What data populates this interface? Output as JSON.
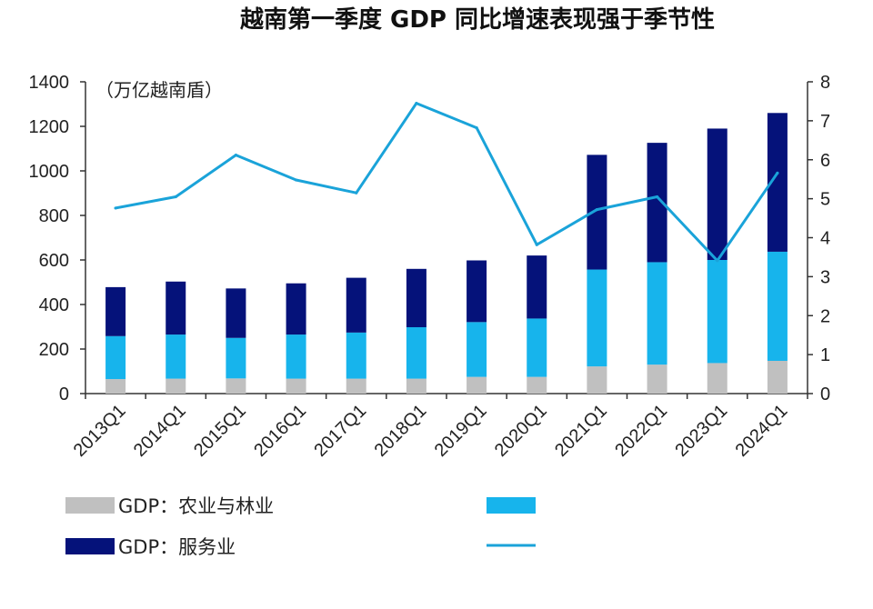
{
  "chart_data": {
    "type": "bar",
    "title": "越南第一季度 GDP 同比增速表现强于季节性",
    "unit_label": "（万亿越南盾）",
    "categories": [
      "2013Q1",
      "2014Q1",
      "2015Q1",
      "2016Q1",
      "2017Q1",
      "2018Q1",
      "2019Q1",
      "2020Q1",
      "2021Q1",
      "2022Q1",
      "2023Q1",
      "2024Q1"
    ],
    "stacked": true,
    "series": [
      {
        "name": "GDP：农业与林业",
        "axis": "left",
        "color": "#c0c0c0",
        "values": [
          65,
          67,
          68,
          67,
          67,
          67,
          75,
          75,
          122,
          130,
          137,
          147
        ]
      },
      {
        "name": "",
        "axis": "left",
        "color": "#17b4ec",
        "values": [
          193,
          198,
          182,
          198,
          207,
          231,
          246,
          262,
          435,
          460,
          463,
          490
        ]
      },
      {
        "name": "GDP：服务业",
        "axis": "left",
        "color": "#05127a",
        "values": [
          220,
          238,
          222,
          230,
          246,
          262,
          277,
          283,
          515,
          536,
          590,
          623
        ]
      },
      {
        "name": "",
        "type": "line",
        "axis": "right",
        "color": "#1aa3d9",
        "values": [
          4.76,
          5.05,
          6.12,
          5.48,
          5.15,
          7.45,
          6.82,
          3.82,
          4.72,
          5.05,
          3.41,
          5.66
        ]
      }
    ],
    "y_left": {
      "min": 0,
      "max": 1400,
      "ticks": [
        0,
        200,
        400,
        600,
        800,
        1000,
        1200,
        1400
      ]
    },
    "y_right": {
      "min": 0,
      "max": 8,
      "ticks": [
        0,
        1,
        2,
        3,
        4,
        5,
        6,
        7,
        8
      ]
    },
    "legend": [
      {
        "label": "GDP：农业与林业",
        "kind": "bar",
        "color": "#c0c0c0"
      },
      {
        "label": "",
        "kind": "bar",
        "color": "#17b4ec"
      },
      {
        "label": "GDP：服务业",
        "kind": "bar",
        "color": "#05127a"
      },
      {
        "label": "",
        "kind": "line",
        "color": "#1aa3d9"
      }
    ]
  }
}
